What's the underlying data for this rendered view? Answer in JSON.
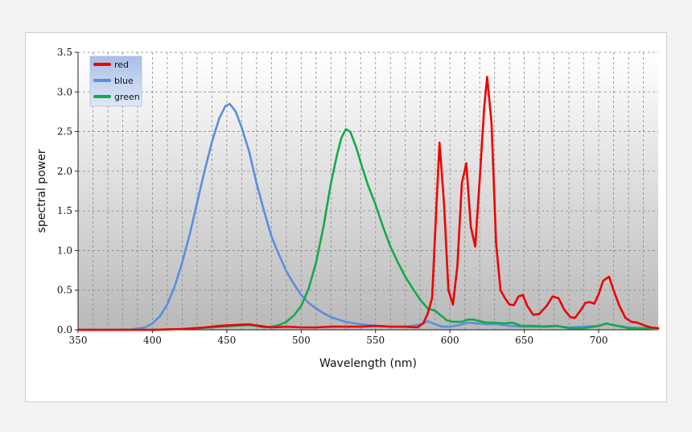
{
  "chart_data": {
    "type": "line",
    "title": "",
    "xlabel": "Wavelength (nm)",
    "ylabel": "spectral power",
    "xlim": [
      350,
      740
    ],
    "ylim": [
      0,
      3.5
    ],
    "xticks": [
      350,
      400,
      450,
      500,
      550,
      600,
      650,
      700
    ],
    "yticks": [
      0.0,
      0.5,
      1.0,
      1.5,
      2.0,
      2.5,
      3.0,
      3.5
    ],
    "grid": true,
    "legend_position": "top-left",
    "series": [
      {
        "name": "red",
        "color": "#ee0000",
        "points": [
          [
            350,
            0
          ],
          [
            380,
            0
          ],
          [
            400,
            0
          ],
          [
            420,
            0.01
          ],
          [
            435,
            0.03
          ],
          [
            445,
            0.05
          ],
          [
            455,
            0.06
          ],
          [
            465,
            0.07
          ],
          [
            472,
            0.05
          ],
          [
            480,
            0.03
          ],
          [
            490,
            0.04
          ],
          [
            500,
            0.03
          ],
          [
            510,
            0.03
          ],
          [
            520,
            0.04
          ],
          [
            530,
            0.04
          ],
          [
            540,
            0.04
          ],
          [
            550,
            0.05
          ],
          [
            560,
            0.04
          ],
          [
            570,
            0.04
          ],
          [
            578,
            0.03
          ],
          [
            582,
            0.08
          ],
          [
            585,
            0.2
          ],
          [
            588,
            0.4
          ],
          [
            590,
            1.2
          ],
          [
            593,
            2.36
          ],
          [
            596,
            1.6
          ],
          [
            599,
            0.5
          ],
          [
            602,
            0.32
          ],
          [
            605,
            0.8
          ],
          [
            608,
            1.85
          ],
          [
            611,
            2.1
          ],
          [
            614,
            1.3
          ],
          [
            617,
            1.05
          ],
          [
            620,
            1.9
          ],
          [
            623,
            2.8
          ],
          [
            625,
            3.19
          ],
          [
            628,
            2.6
          ],
          [
            631,
            1.1
          ],
          [
            634,
            0.5
          ],
          [
            637,
            0.4
          ],
          [
            640,
            0.32
          ],
          [
            643,
            0.31
          ],
          [
            646,
            0.42
          ],
          [
            649,
            0.44
          ],
          [
            652,
            0.3
          ],
          [
            656,
            0.19
          ],
          [
            660,
            0.2
          ],
          [
            665,
            0.3
          ],
          [
            669,
            0.42
          ],
          [
            673,
            0.4
          ],
          [
            677,
            0.25
          ],
          [
            681,
            0.16
          ],
          [
            684,
            0.15
          ],
          [
            688,
            0.25
          ],
          [
            691,
            0.34
          ],
          [
            694,
            0.35
          ],
          [
            697,
            0.33
          ],
          [
            700,
            0.45
          ],
          [
            703,
            0.62
          ],
          [
            707,
            0.67
          ],
          [
            710,
            0.5
          ],
          [
            714,
            0.3
          ],
          [
            718,
            0.15
          ],
          [
            722,
            0.1
          ],
          [
            726,
            0.09
          ],
          [
            730,
            0.06
          ],
          [
            735,
            0.03
          ],
          [
            740,
            0.02
          ]
        ]
      },
      {
        "name": "blue",
        "color": "#5890dc",
        "points": [
          [
            350,
            0
          ],
          [
            370,
            0
          ],
          [
            385,
            0.005
          ],
          [
            395,
            0.03
          ],
          [
            400,
            0.08
          ],
          [
            405,
            0.17
          ],
          [
            410,
            0.32
          ],
          [
            415,
            0.55
          ],
          [
            420,
            0.85
          ],
          [
            425,
            1.2
          ],
          [
            430,
            1.6
          ],
          [
            435,
            2.0
          ],
          [
            440,
            2.37
          ],
          [
            445,
            2.67
          ],
          [
            449,
            2.82
          ],
          [
            452,
            2.85
          ],
          [
            456,
            2.75
          ],
          [
            460,
            2.55
          ],
          [
            465,
            2.25
          ],
          [
            470,
            1.85
          ],
          [
            475,
            1.5
          ],
          [
            480,
            1.18
          ],
          [
            485,
            0.95
          ],
          [
            490,
            0.74
          ],
          [
            495,
            0.58
          ],
          [
            500,
            0.44
          ],
          [
            505,
            0.34
          ],
          [
            510,
            0.27
          ],
          [
            515,
            0.21
          ],
          [
            520,
            0.16
          ],
          [
            530,
            0.1
          ],
          [
            540,
            0.07
          ],
          [
            550,
            0.05
          ],
          [
            560,
            0.04
          ],
          [
            570,
            0.04
          ],
          [
            578,
            0.06
          ],
          [
            582,
            0.08
          ],
          [
            585,
            0.11
          ],
          [
            590,
            0.07
          ],
          [
            595,
            0.04
          ],
          [
            600,
            0.04
          ],
          [
            606,
            0.06
          ],
          [
            612,
            0.09
          ],
          [
            618,
            0.08
          ],
          [
            625,
            0.07
          ],
          [
            632,
            0.07
          ],
          [
            640,
            0.05
          ],
          [
            650,
            0.04
          ],
          [
            660,
            0.04
          ],
          [
            670,
            0.05
          ],
          [
            680,
            0.03
          ],
          [
            690,
            0.04
          ],
          [
            700,
            0.05
          ],
          [
            705,
            0.08
          ],
          [
            710,
            0.06
          ],
          [
            720,
            0.03
          ],
          [
            730,
            0.02
          ],
          [
            740,
            0.01
          ]
        ]
      },
      {
        "name": "green",
        "color": "#16a84a",
        "points": [
          [
            350,
            0
          ],
          [
            380,
            0
          ],
          [
            400,
            0
          ],
          [
            420,
            0.01
          ],
          [
            440,
            0.03
          ],
          [
            455,
            0.05
          ],
          [
            465,
            0.06
          ],
          [
            470,
            0.05
          ],
          [
            475,
            0.03
          ],
          [
            480,
            0.04
          ],
          [
            485,
            0.06
          ],
          [
            490,
            0.1
          ],
          [
            495,
            0.18
          ],
          [
            500,
            0.3
          ],
          [
            505,
            0.52
          ],
          [
            510,
            0.85
          ],
          [
            515,
            1.3
          ],
          [
            520,
            1.85
          ],
          [
            524,
            2.2
          ],
          [
            527,
            2.42
          ],
          [
            530,
            2.53
          ],
          [
            533,
            2.5
          ],
          [
            537,
            2.3
          ],
          [
            541,
            2.05
          ],
          [
            545,
            1.82
          ],
          [
            550,
            1.58
          ],
          [
            555,
            1.3
          ],
          [
            560,
            1.05
          ],
          [
            565,
            0.85
          ],
          [
            570,
            0.67
          ],
          [
            575,
            0.52
          ],
          [
            580,
            0.38
          ],
          [
            585,
            0.27
          ],
          [
            590,
            0.24
          ],
          [
            594,
            0.18
          ],
          [
            598,
            0.12
          ],
          [
            602,
            0.1
          ],
          [
            608,
            0.1
          ],
          [
            612,
            0.13
          ],
          [
            616,
            0.13
          ],
          [
            620,
            0.11
          ],
          [
            625,
            0.09
          ],
          [
            630,
            0.09
          ],
          [
            636,
            0.08
          ],
          [
            642,
            0.09
          ],
          [
            648,
            0.05
          ],
          [
            655,
            0.05
          ],
          [
            665,
            0.04
          ],
          [
            672,
            0.05
          ],
          [
            680,
            0.02
          ],
          [
            690,
            0.02
          ],
          [
            700,
            0.05
          ],
          [
            705,
            0.08
          ],
          [
            710,
            0.06
          ],
          [
            720,
            0.02
          ],
          [
            730,
            0.02
          ],
          [
            740,
            0.02
          ]
        ]
      }
    ]
  }
}
